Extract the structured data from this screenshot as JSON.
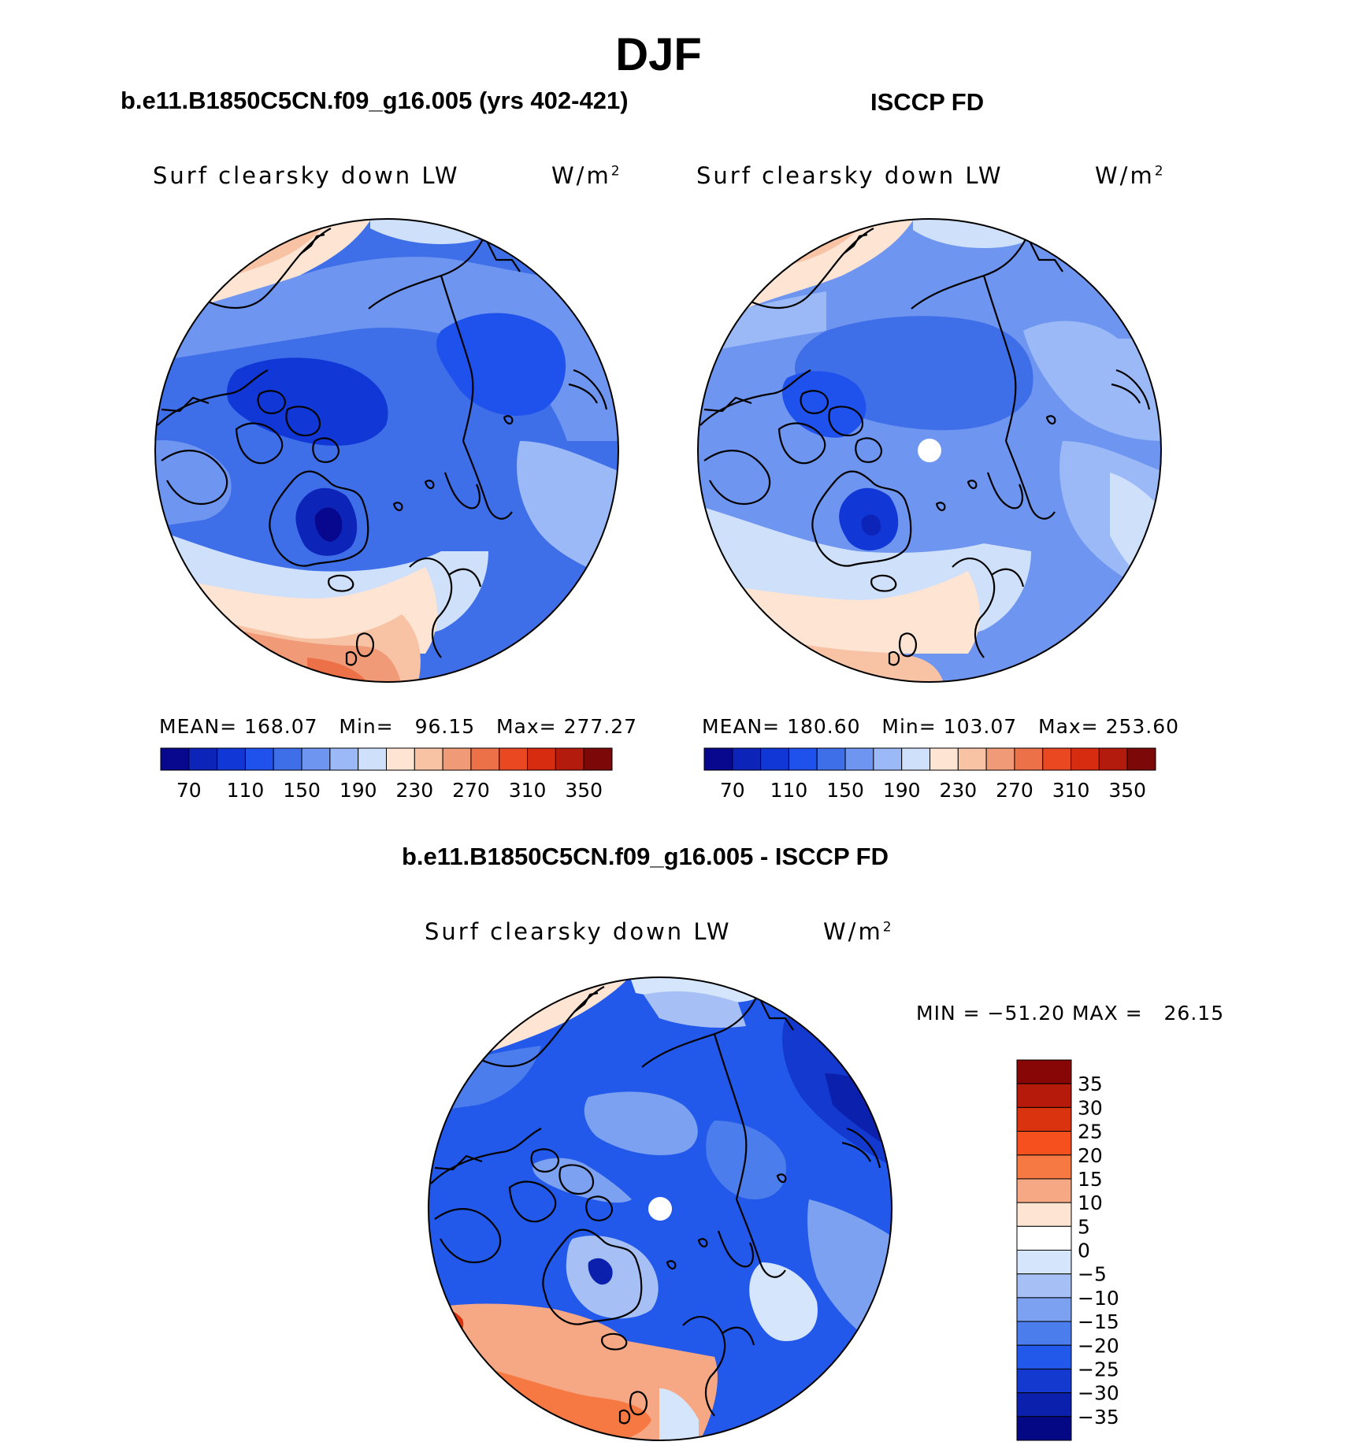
{
  "figure": {
    "title": "DJF"
  },
  "panels": [
    {
      "title": "b.e11.B1850C5CN.f09_g16.005 (yrs 402-421)",
      "variable": "Surf clearsky down LW",
      "units": "W/m",
      "units_sup": "2",
      "stats": {
        "mean_label": "MEAN=",
        "mean": "168.07",
        "min_label": "Min=",
        "min": "96.15",
        "max_label": "Max=",
        "max": "277.27"
      },
      "pole_hole": false
    },
    {
      "title": "ISCCP FD",
      "variable": "Surf clearsky down LW",
      "units": "W/m",
      "units_sup": "2",
      "stats": {
        "mean_label": "MEAN=",
        "mean": "180.60",
        "min_label": "Min=",
        "min": "103.07",
        "max_label": "Max=",
        "max": "253.60"
      },
      "pole_hole": true
    },
    {
      "title": "b.e11.B1850C5CN.f09_g16.005 - ISCCP FD",
      "variable": "Surf clearsky down LW",
      "units": "W/m",
      "units_sup": "2",
      "stats": {
        "min_label": "MIN =",
        "min": "−51.20",
        "max_label": "MAX =",
        "max": "26.15"
      },
      "pole_hole": true
    }
  ],
  "colorbars": {
    "field": {
      "tick_labels": [
        "70",
        "110",
        "150",
        "190",
        "230",
        "270",
        "310",
        "350"
      ],
      "colors": [
        "#08088f",
        "#0d24b8",
        "#1138d6",
        "#1f52ec",
        "#3f6fe8",
        "#6e95f0",
        "#9ab9f6",
        "#cfe0fb",
        "#fde4d3",
        "#f8c2a5",
        "#f19a77",
        "#ec7148",
        "#e94820",
        "#d72c10",
        "#b31c0c",
        "#7d0808"
      ]
    },
    "difference": {
      "tick_labels": [
        "35",
        "30",
        "25",
        "20",
        "15",
        "10",
        "5",
        "0",
        "−5",
        "−10",
        "−15",
        "−20",
        "−25",
        "−30",
        "−35"
      ],
      "colors": [
        "#870707",
        "#b51a0a",
        "#da3310",
        "#f6501e",
        "#f67842",
        "#f6a884",
        "#fde4d3",
        "#ffffff",
        "#d5e5fb",
        "#a6c0f6",
        "#7ba1f0",
        "#4c7dec",
        "#2359ea",
        "#1339cf",
        "#0b21ad",
        "#050884"
      ]
    }
  }
}
